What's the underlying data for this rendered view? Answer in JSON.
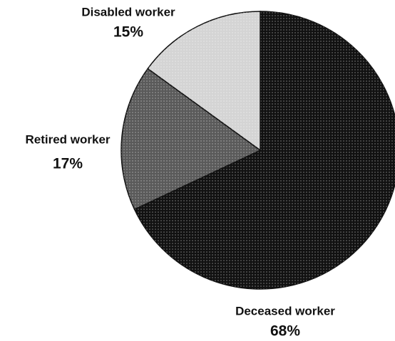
{
  "chart_data": {
    "type": "pie",
    "categories": [
      "Deceased worker",
      "Retired worker",
      "Disabled worker"
    ],
    "values": [
      68,
      17,
      15
    ],
    "value_labels": [
      "68%",
      "17%",
      "15%"
    ],
    "colors": [
      "#111111",
      "#5a5a5a",
      "#d4d4d4"
    ]
  }
}
